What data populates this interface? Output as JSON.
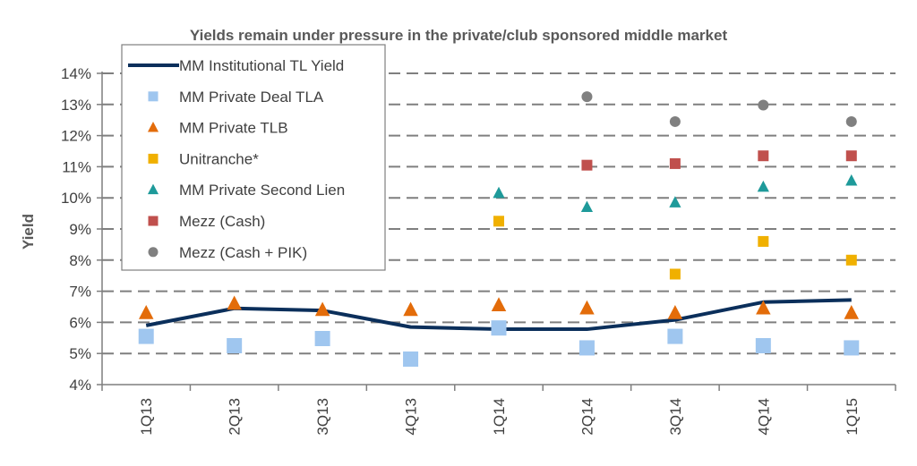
{
  "chart_data": {
    "type": "line",
    "title": "Yields remain under pressure in the private/club sponsored middle market",
    "xlabel": "",
    "ylabel": "Yield",
    "categories": [
      "1Q13",
      "2Q13",
      "3Q13",
      "4Q13",
      "1Q14",
      "2Q14",
      "3Q14",
      "4Q14",
      "1Q15"
    ],
    "ylim": [
      4,
      14
    ],
    "y_ticks": [
      "4%",
      "5%",
      "6%",
      "7%",
      "8%",
      "9%",
      "10%",
      "11%",
      "12%",
      "13%",
      "14%"
    ],
    "grid": "horizontal dashed",
    "legend_position": "top-left (inside)",
    "series": [
      {
        "name": "MM Institutional TL Yield",
        "kind": "line",
        "color": "#0b2f5b",
        "values": [
          5.9,
          6.45,
          6.38,
          5.85,
          5.78,
          5.78,
          6.08,
          6.65,
          6.72
        ]
      },
      {
        "name": "MM Private Deal TLA",
        "kind": "square",
        "color": "#9fc6ef",
        "values": [
          5.55,
          5.25,
          5.48,
          4.82,
          5.82,
          5.18,
          5.55,
          5.25,
          5.18
        ]
      },
      {
        "name": "MM Private TLB",
        "kind": "triangle",
        "color": "#e36c0a",
        "values": [
          6.3,
          6.6,
          6.4,
          6.4,
          6.55,
          6.45,
          6.3,
          6.45,
          6.3
        ]
      },
      {
        "name": "Unitranche*",
        "kind": "square",
        "color": "#f0b000",
        "values": [
          null,
          null,
          null,
          null,
          9.25,
          null,
          7.55,
          8.6,
          8.0
        ]
      },
      {
        "name": "MM Private Second Lien",
        "kind": "triangle",
        "color": "#1e9a9a",
        "values": [
          null,
          null,
          null,
          null,
          10.15,
          9.7,
          9.85,
          10.35,
          10.55
        ]
      },
      {
        "name": "Mezz (Cash)",
        "kind": "square",
        "color": "#c0504d",
        "values": [
          null,
          null,
          null,
          null,
          null,
          11.05,
          11.1,
          11.35,
          11.35
        ]
      },
      {
        "name": "Mezz (Cash + PIK)",
        "kind": "circle",
        "color": "#808080",
        "values": [
          null,
          null,
          null,
          null,
          null,
          13.25,
          12.45,
          12.98,
          12.45
        ]
      }
    ]
  }
}
